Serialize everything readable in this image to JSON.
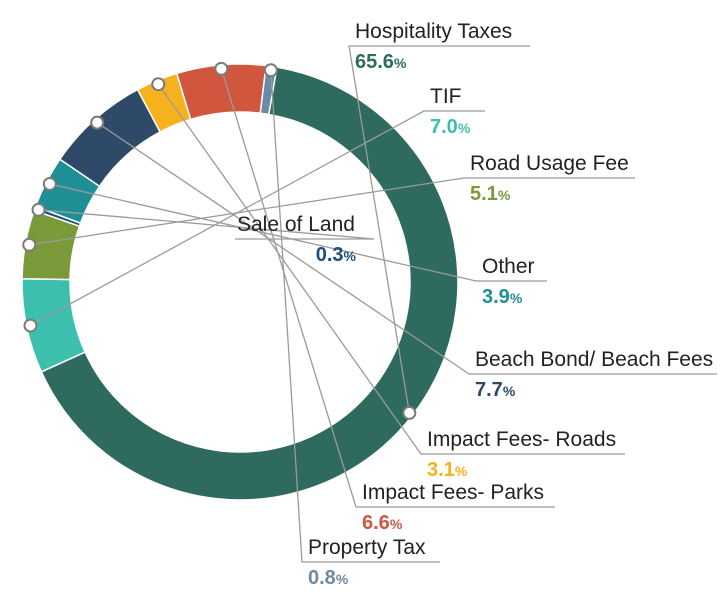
{
  "chart_data": {
    "type": "pie",
    "donut": true,
    "title": "",
    "unit": "%",
    "slices": [
      {
        "name": "Hospitality Taxes",
        "value": 65.6,
        "value_label": "65.6",
        "color": "#2e6b5e"
      },
      {
        "name": "TIF",
        "value": 7.0,
        "value_label": "7.0",
        "color": "#3dbfae"
      },
      {
        "name": "Road Usage Fee",
        "value": 5.1,
        "value_label": "5.1",
        "color": "#7a9a3a"
      },
      {
        "name": "Sale of Land",
        "value": 0.3,
        "value_label": "0.3",
        "color": "#1f4e7a"
      },
      {
        "name": "Other",
        "value": 3.9,
        "value_label": "3.9",
        "color": "#1f8f96"
      },
      {
        "name": "Beach Bond/ Beach Fees",
        "value": 7.7,
        "value_label": "7.7",
        "color": "#2e4a68"
      },
      {
        "name": "Impact Fees- Roads",
        "value": 3.1,
        "value_label": "3.1",
        "color": "#f5b21d"
      },
      {
        "name": "Impact Fees- Parks",
        "value": 6.6,
        "value_label": "6.6",
        "color": "#d0563e"
      },
      {
        "name": "Property Tax",
        "value": 0.8,
        "value_label": "0.8",
        "color": "#6b8aa6"
      }
    ]
  }
}
